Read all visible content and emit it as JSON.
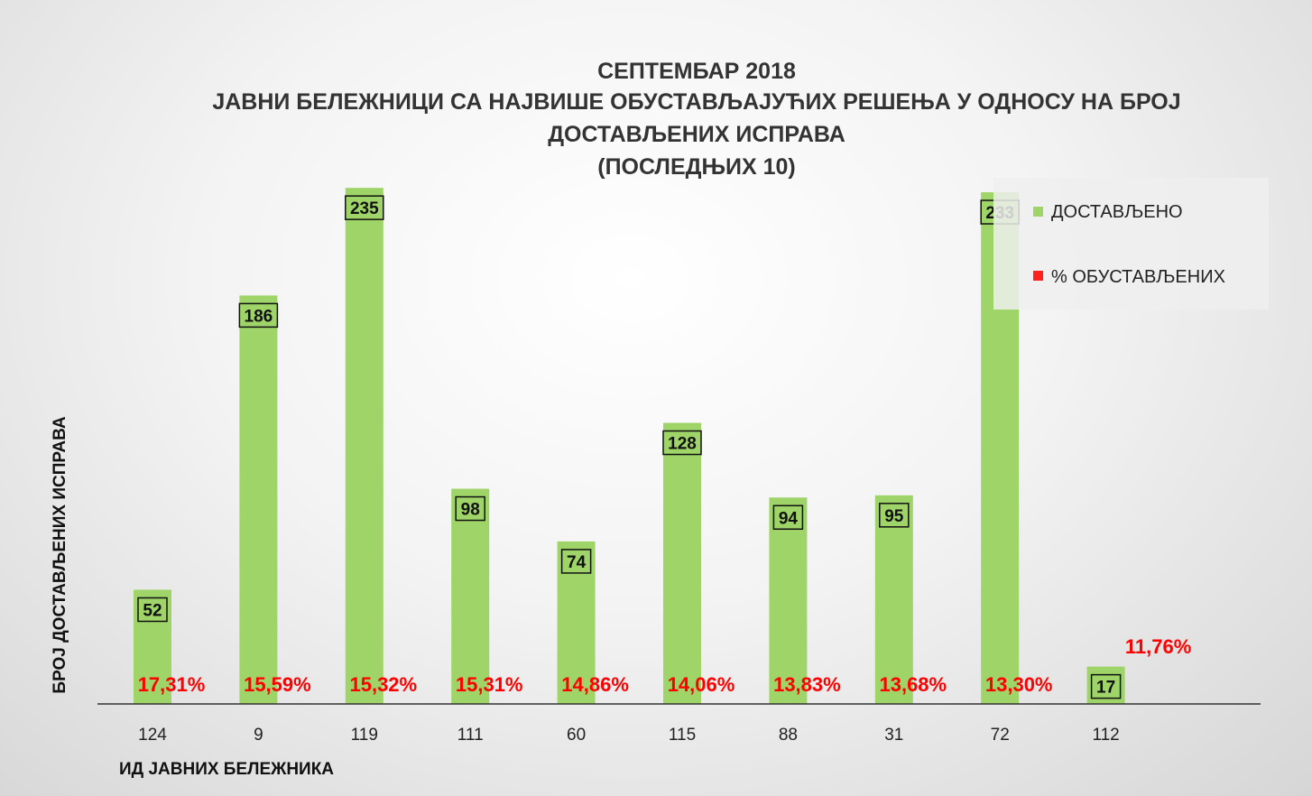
{
  "chart_data": {
    "type": "bar",
    "title_lines": [
      "СЕПТЕМБАР 2018",
      "ЈАВНИ БЕЛЕЖНИЦИ СА НАЈВИШЕ ОБУСТАВЉАЈУЋИХ РЕШЕЊА У ОДНОСУ НА БРОЈ",
      "ДОСТАВЉЕНИХ ИСПРАВА",
      "(ПОСЛЕДЊИХ 10)"
    ],
    "xlabel": "ИД ЈАВНИХ БЕЛЕЖНИКА",
    "ylabel": "БРОЈ ДОСТАВЉЕНИХ ИСПРАВА",
    "categories": [
      "124",
      "9",
      "119",
      "111",
      "60",
      "115",
      "88",
      "31",
      "72",
      "112"
    ],
    "ylim": [
      0,
      240
    ],
    "grid": false,
    "legend_position": "top-right",
    "series": [
      {
        "name": "ДОСТАВЉЕНО",
        "color": "#9ed468",
        "values": [
          52,
          186,
          235,
          98,
          74,
          128,
          94,
          95,
          233,
          17
        ],
        "labels": [
          "52",
          "186",
          "235",
          "98",
          "74",
          "128",
          "94",
          "95",
          "233",
          "17"
        ]
      },
      {
        "name": "% ОБУСТАВЉЕНИХ",
        "color": "#ff2020",
        "values": [
          17.31,
          15.59,
          15.32,
          15.31,
          14.86,
          14.06,
          13.83,
          13.68,
          13.3,
          11.76
        ],
        "labels": [
          "17,31%",
          "15,59%",
          "15,32%",
          "15,31%",
          "14,86%",
          "14,06%",
          "13,83%",
          "13,68%",
          "13,30%",
          "11,76%"
        ]
      }
    ]
  }
}
